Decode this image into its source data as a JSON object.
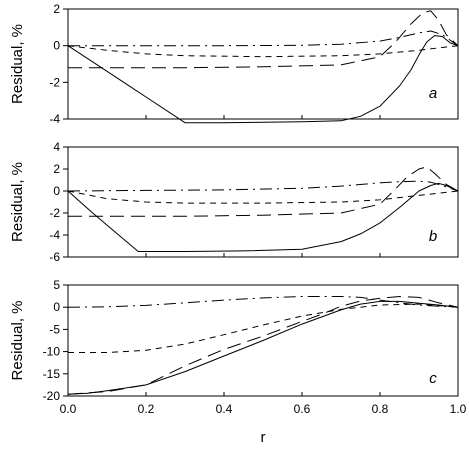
{
  "chart_data": [
    {
      "type": "line",
      "panel_label": "a",
      "ylabel": "Residual, %",
      "xlim": [
        0,
        1
      ],
      "ylim": [
        -4,
        2
      ],
      "yticks": [
        -4,
        -2,
        0,
        2
      ],
      "ytick_labels": [
        "-4",
        "-2",
        "0",
        "2"
      ],
      "xtick_labels": [],
      "series": [
        {
          "style": "solid",
          "x": [
            0,
            0.1,
            0.2,
            0.3,
            0.4,
            0.5,
            0.6,
            0.7,
            0.75,
            0.8,
            0.85,
            0.88,
            0.9,
            0.92,
            0.94,
            0.96,
            0.98,
            1.0
          ],
          "y": [
            0,
            -1.4,
            -2.8,
            -4.2,
            -4.2,
            -4.18,
            -4.15,
            -4.1,
            -3.85,
            -3.3,
            -2.2,
            -1.3,
            -0.5,
            0.2,
            0.55,
            0.5,
            0.15,
            0
          ]
        },
        {
          "style": "long-dash",
          "x": [
            0,
            0.1,
            0.3,
            0.5,
            0.7,
            0.8,
            0.84,
            0.88,
            0.91,
            0.93,
            0.95,
            0.97,
            1.0
          ],
          "y": [
            -1.2,
            -1.2,
            -1.2,
            -1.15,
            -1.05,
            -0.6,
            0.2,
            1.2,
            1.8,
            1.9,
            1.4,
            0.6,
            0
          ]
        },
        {
          "style": "short-dash",
          "x": [
            0,
            0.1,
            0.2,
            0.3,
            0.5,
            0.7,
            0.8,
            0.9,
            0.95,
            1.0
          ],
          "y": [
            0,
            -0.25,
            -0.45,
            -0.55,
            -0.6,
            -0.55,
            -0.45,
            -0.25,
            -0.12,
            0
          ]
        },
        {
          "style": "dash-dot",
          "x": [
            0,
            0.2,
            0.4,
            0.6,
            0.7,
            0.8,
            0.85,
            0.9,
            0.93,
            0.96,
            1.0
          ],
          "y": [
            0,
            0,
            0,
            0.02,
            0.08,
            0.25,
            0.45,
            0.7,
            0.8,
            0.6,
            0
          ]
        }
      ]
    },
    {
      "type": "line",
      "panel_label": "b",
      "ylabel": "Residual, %",
      "xlim": [
        0,
        1
      ],
      "ylim": [
        -6,
        4
      ],
      "yticks": [
        -6,
        -4,
        -2,
        0,
        2,
        4
      ],
      "ytick_labels": [
        "-6",
        "-4",
        "-2",
        "0",
        "2",
        "4"
      ],
      "xtick_labels": [],
      "series": [
        {
          "style": "solid",
          "x": [
            0,
            0.06,
            0.12,
            0.18,
            0.3,
            0.45,
            0.6,
            0.7,
            0.75,
            0.8,
            0.85,
            0.9,
            0.93,
            0.95,
            0.97,
            1.0
          ],
          "y": [
            0,
            -1.9,
            -3.7,
            -5.5,
            -5.5,
            -5.45,
            -5.3,
            -4.6,
            -3.9,
            -2.9,
            -1.5,
            0,
            0.5,
            0.7,
            0.5,
            0
          ]
        },
        {
          "style": "long-dash",
          "x": [
            0,
            0.1,
            0.3,
            0.5,
            0.7,
            0.8,
            0.84,
            0.87,
            0.9,
            0.92,
            0.94,
            0.97,
            1.0
          ],
          "y": [
            -2.3,
            -2.3,
            -2.3,
            -2.2,
            -2.0,
            -1.2,
            0.2,
            1.3,
            2.0,
            2.2,
            1.6,
            0.6,
            0
          ]
        },
        {
          "style": "short-dash",
          "x": [
            0,
            0.1,
            0.2,
            0.3,
            0.5,
            0.7,
            0.8,
            0.9,
            0.95,
            1.0
          ],
          "y": [
            0,
            -0.7,
            -1.0,
            -1.1,
            -1.1,
            -1.0,
            -0.8,
            -0.4,
            -0.2,
            0
          ]
        },
        {
          "style": "dash-dot",
          "x": [
            0,
            0.2,
            0.4,
            0.6,
            0.7,
            0.8,
            0.85,
            0.9,
            0.93,
            0.96,
            1.0
          ],
          "y": [
            0,
            0.05,
            0.1,
            0.25,
            0.45,
            0.75,
            0.85,
            0.9,
            0.8,
            0.5,
            0
          ]
        }
      ]
    },
    {
      "type": "line",
      "panel_label": "c",
      "ylabel": "Residual, %",
      "xlabel": "r",
      "xlim": [
        0,
        1
      ],
      "ylim": [
        -20,
        5
      ],
      "yticks": [
        -20,
        -15,
        -10,
        -5,
        0,
        5
      ],
      "ytick_labels": [
        "-20",
        "-15",
        "-10",
        "-5",
        "0",
        "5"
      ],
      "xticks": [
        0,
        0.2,
        0.4,
        0.6,
        0.8,
        1.0
      ],
      "xtick_labels": [
        "0.0",
        "0.2",
        "0.4",
        "0.6",
        "0.8",
        "1.0"
      ],
      "series": [
        {
          "style": "solid",
          "x": [
            0,
            0.05,
            0.1,
            0.2,
            0.3,
            0.4,
            0.5,
            0.6,
            0.65,
            0.7,
            0.75,
            0.8,
            0.85,
            0.9,
            0.95,
            1.0
          ],
          "y": [
            -19.6,
            -19.4,
            -18.8,
            -17.5,
            -14.5,
            -11,
            -7.5,
            -3.8,
            -2.2,
            -0.6,
            0.7,
            1.3,
            1.3,
            0.9,
            0.5,
            0
          ]
        },
        {
          "style": "long-dash",
          "x": [
            0,
            0.1,
            0.2,
            0.3,
            0.4,
            0.5,
            0.6,
            0.65,
            0.7,
            0.75,
            0.8,
            0.85,
            0.9,
            0.95,
            1.0
          ],
          "y": [
            -19.6,
            -19,
            -17.5,
            -13.2,
            -9.5,
            -6.5,
            -3.2,
            -1.6,
            0.2,
            1.4,
            2.0,
            2.4,
            2.2,
            1.0,
            0
          ]
        },
        {
          "style": "short-dash",
          "x": [
            0,
            0.1,
            0.2,
            0.3,
            0.4,
            0.5,
            0.6,
            0.7,
            0.8,
            0.9,
            1.0
          ],
          "y": [
            -10.2,
            -10.2,
            -9.7,
            -8.3,
            -6.2,
            -4.0,
            -2.0,
            -0.5,
            0.5,
            0.7,
            0
          ]
        },
        {
          "style": "dash-dot",
          "x": [
            0,
            0.1,
            0.2,
            0.3,
            0.4,
            0.5,
            0.6,
            0.7,
            0.75,
            0.8,
            0.85,
            0.9,
            0.95,
            1.0
          ],
          "y": [
            0,
            0.1,
            0.4,
            1.0,
            1.6,
            2.1,
            2.4,
            2.4,
            2.2,
            1.6,
            1.0,
            0.5,
            0.2,
            0
          ]
        }
      ]
    }
  ]
}
